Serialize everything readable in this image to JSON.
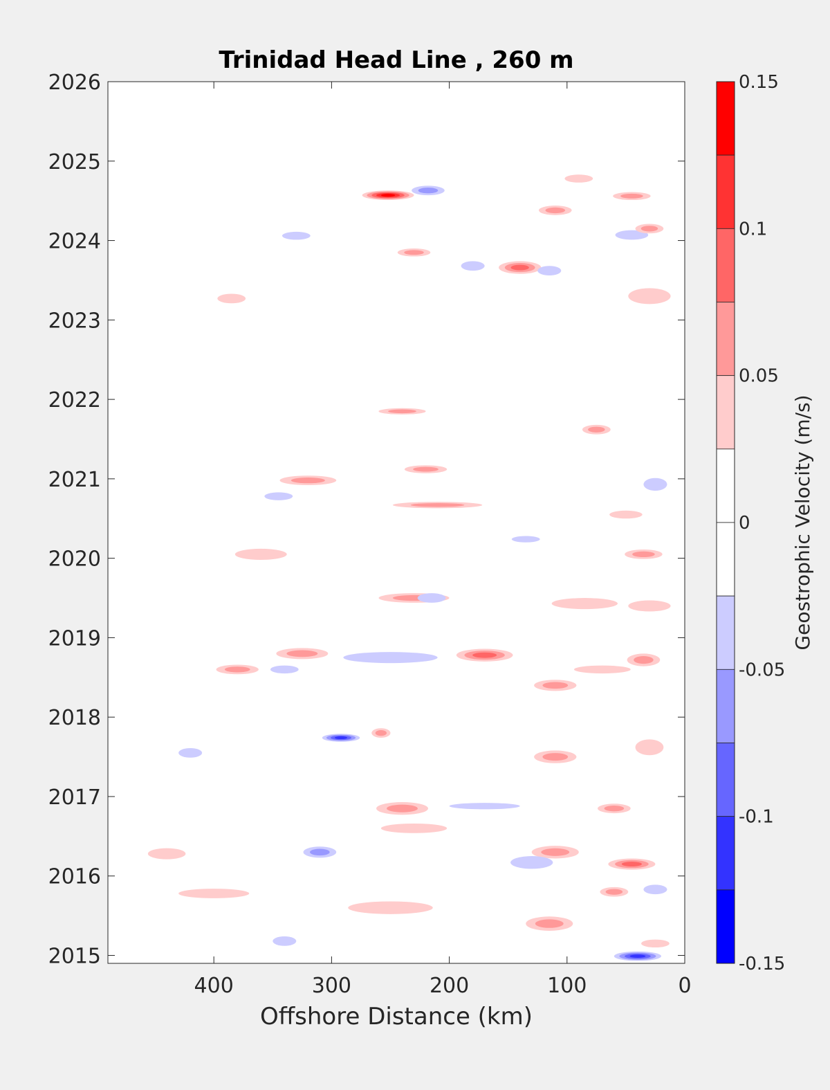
{
  "chart_data": {
    "type": "heatmap",
    "title": "Trinidad Head Line , 260 m",
    "xlabel": "Offshore Distance (km)",
    "ylabel": "",
    "xlim": [
      490,
      0
    ],
    "xdirection": "reversed",
    "ylim": [
      2014.9,
      2026
    ],
    "xticks": [
      400,
      300,
      200,
      100,
      0
    ],
    "yticks": [
      2015,
      2016,
      2017,
      2018,
      2019,
      2020,
      2021,
      2022,
      2023,
      2024,
      2025,
      2026
    ],
    "colorbar": {
      "label": "Geostrophic Velocity (m/s)",
      "range": [
        -0.15,
        0.15
      ],
      "ticks": [
        "0.15",
        "0.1",
        "0.05",
        "0",
        "-0.05",
        "-0.1",
        "-0.15"
      ],
      "tick_values": [
        0.15,
        0.1,
        0.05,
        0,
        -0.05,
        -0.1,
        -0.15
      ],
      "levels": [
        {
          "min": 0.125,
          "max": 0.15,
          "color": "#ff0000"
        },
        {
          "min": 0.1,
          "max": 0.125,
          "color": "#ff3333"
        },
        {
          "min": 0.075,
          "max": 0.1,
          "color": "#ff6666"
        },
        {
          "min": 0.05,
          "max": 0.075,
          "color": "#ff9999"
        },
        {
          "min": 0.025,
          "max": 0.05,
          "color": "#ffcccc"
        },
        {
          "min": 0,
          "max": 0.025,
          "color": "#ffffff"
        },
        {
          "min": -0.025,
          "max": 0,
          "color": "#ffffff"
        },
        {
          "min": -0.05,
          "max": -0.025,
          "color": "#ccccff"
        },
        {
          "min": -0.075,
          "max": -0.05,
          "color": "#9999ff"
        },
        {
          "min": -0.1,
          "max": -0.075,
          "color": "#6666ff"
        },
        {
          "min": -0.125,
          "max": -0.1,
          "color": "#3333ff"
        },
        {
          "min": -0.15,
          "max": -0.125,
          "color": "#0000ff"
        }
      ]
    },
    "grid": false,
    "features": [
      {
        "x": 252,
        "y": 2024.57,
        "dx": 22,
        "dy": 0.06,
        "v": 0.14
      },
      {
        "x": 218,
        "y": 2024.63,
        "dx": 14,
        "dy": 0.06,
        "v": -0.06
      },
      {
        "x": 140,
        "y": 2023.66,
        "dx": 18,
        "dy": 0.08,
        "v": 0.09
      },
      {
        "x": 110,
        "y": 2024.38,
        "dx": 14,
        "dy": 0.06,
        "v": 0.06
      },
      {
        "x": 45,
        "y": 2024.56,
        "dx": 16,
        "dy": 0.05,
        "v": 0.06
      },
      {
        "x": 45,
        "y": 2024.07,
        "dx": 14,
        "dy": 0.06,
        "v": -0.03
      },
      {
        "x": 30,
        "y": 2024.15,
        "dx": 12,
        "dy": 0.06,
        "v": 0.05
      },
      {
        "x": 90,
        "y": 2024.78,
        "dx": 12,
        "dy": 0.05,
        "v": 0.04
      },
      {
        "x": 330,
        "y": 2024.06,
        "dx": 12,
        "dy": 0.05,
        "v": -0.03
      },
      {
        "x": 385,
        "y": 2023.27,
        "dx": 12,
        "dy": 0.06,
        "v": 0.03
      },
      {
        "x": 230,
        "y": 2023.85,
        "dx": 14,
        "dy": 0.05,
        "v": 0.05
      },
      {
        "x": 115,
        "y": 2023.62,
        "dx": 10,
        "dy": 0.06,
        "v": -0.03
      },
      {
        "x": 180,
        "y": 2023.68,
        "dx": 10,
        "dy": 0.06,
        "v": -0.03
      },
      {
        "x": 30,
        "y": 2023.3,
        "dx": 18,
        "dy": 0.1,
        "v": 0.04
      },
      {
        "x": 240,
        "y": 2021.85,
        "dx": 20,
        "dy": 0.04,
        "v": 0.05
      },
      {
        "x": 75,
        "y": 2021.62,
        "dx": 12,
        "dy": 0.06,
        "v": 0.06
      },
      {
        "x": 220,
        "y": 2021.12,
        "dx": 18,
        "dy": 0.05,
        "v": 0.06
      },
      {
        "x": 320,
        "y": 2020.98,
        "dx": 24,
        "dy": 0.06,
        "v": 0.05
      },
      {
        "x": 210,
        "y": 2020.67,
        "dx": 38,
        "dy": 0.04,
        "v": 0.07
      },
      {
        "x": 345,
        "y": 2020.78,
        "dx": 12,
        "dy": 0.05,
        "v": -0.03
      },
      {
        "x": 25,
        "y": 2020.93,
        "dx": 10,
        "dy": 0.08,
        "v": -0.03
      },
      {
        "x": 35,
        "y": 2020.05,
        "dx": 16,
        "dy": 0.06,
        "v": 0.07
      },
      {
        "x": 360,
        "y": 2020.05,
        "dx": 22,
        "dy": 0.07,
        "v": 0.04
      },
      {
        "x": 230,
        "y": 2019.5,
        "dx": 30,
        "dy": 0.06,
        "v": 0.06
      },
      {
        "x": 215,
        "y": 2019.5,
        "dx": 12,
        "dy": 0.06,
        "v": -0.04
      },
      {
        "x": 85,
        "y": 2019.43,
        "dx": 28,
        "dy": 0.07,
        "v": 0.04
      },
      {
        "x": 30,
        "y": 2019.4,
        "dx": 18,
        "dy": 0.07,
        "v": 0.04
      },
      {
        "x": 325,
        "y": 2018.8,
        "dx": 22,
        "dy": 0.07,
        "v": 0.07
      },
      {
        "x": 170,
        "y": 2018.78,
        "dx": 24,
        "dy": 0.08,
        "v": 0.08
      },
      {
        "x": 380,
        "y": 2018.6,
        "dx": 18,
        "dy": 0.06,
        "v": 0.06
      },
      {
        "x": 250,
        "y": 2018.75,
        "dx": 40,
        "dy": 0.07,
        "v": -0.04
      },
      {
        "x": 35,
        "y": 2018.72,
        "dx": 14,
        "dy": 0.08,
        "v": 0.06
      },
      {
        "x": 70,
        "y": 2018.6,
        "dx": 24,
        "dy": 0.05,
        "v": 0.03
      },
      {
        "x": 110,
        "y": 2018.4,
        "dx": 18,
        "dy": 0.07,
        "v": 0.05
      },
      {
        "x": 340,
        "y": 2018.6,
        "dx": 12,
        "dy": 0.05,
        "v": -0.03
      },
      {
        "x": 292,
        "y": 2017.74,
        "dx": 16,
        "dy": 0.05,
        "v": -0.12
      },
      {
        "x": 258,
        "y": 2017.8,
        "dx": 8,
        "dy": 0.06,
        "v": 0.06
      },
      {
        "x": 110,
        "y": 2017.5,
        "dx": 18,
        "dy": 0.08,
        "v": 0.07
      },
      {
        "x": 420,
        "y": 2017.55,
        "dx": 10,
        "dy": 0.06,
        "v": -0.03
      },
      {
        "x": 30,
        "y": 2017.62,
        "dx": 12,
        "dy": 0.1,
        "v": 0.04
      },
      {
        "x": 240,
        "y": 2016.85,
        "dx": 22,
        "dy": 0.08,
        "v": 0.05
      },
      {
        "x": 170,
        "y": 2016.88,
        "dx": 30,
        "dy": 0.04,
        "v": -0.03
      },
      {
        "x": 230,
        "y": 2016.6,
        "dx": 28,
        "dy": 0.06,
        "v": 0.04
      },
      {
        "x": 60,
        "y": 2016.85,
        "dx": 14,
        "dy": 0.06,
        "v": 0.05
      },
      {
        "x": 310,
        "y": 2016.3,
        "dx": 14,
        "dy": 0.07,
        "v": -0.07
      },
      {
        "x": 440,
        "y": 2016.28,
        "dx": 16,
        "dy": 0.07,
        "v": 0.04
      },
      {
        "x": 110,
        "y": 2016.3,
        "dx": 20,
        "dy": 0.08,
        "v": 0.07
      },
      {
        "x": 45,
        "y": 2016.15,
        "dx": 20,
        "dy": 0.07,
        "v": 0.08
      },
      {
        "x": 130,
        "y": 2016.17,
        "dx": 18,
        "dy": 0.08,
        "v": -0.03
      },
      {
        "x": 400,
        "y": 2015.78,
        "dx": 30,
        "dy": 0.06,
        "v": 0.04
      },
      {
        "x": 250,
        "y": 2015.6,
        "dx": 36,
        "dy": 0.08,
        "v": 0.04
      },
      {
        "x": 115,
        "y": 2015.4,
        "dx": 20,
        "dy": 0.09,
        "v": 0.06
      },
      {
        "x": 60,
        "y": 2015.8,
        "dx": 12,
        "dy": 0.06,
        "v": 0.05
      },
      {
        "x": 25,
        "y": 2015.83,
        "dx": 10,
        "dy": 0.06,
        "v": -0.04
      },
      {
        "x": 40,
        "y": 2014.99,
        "dx": 20,
        "dy": 0.06,
        "v": -0.12
      },
      {
        "x": 340,
        "y": 2015.18,
        "dx": 10,
        "dy": 0.06,
        "v": -0.03
      },
      {
        "x": 25,
        "y": 2015.15,
        "dx": 12,
        "dy": 0.05,
        "v": 0.04
      },
      {
        "x": 135,
        "y": 2020.24,
        "dx": 12,
        "dy": 0.04,
        "v": -0.04
      },
      {
        "x": 50,
        "y": 2020.55,
        "dx": 14,
        "dy": 0.05,
        "v": 0.04
      }
    ]
  }
}
